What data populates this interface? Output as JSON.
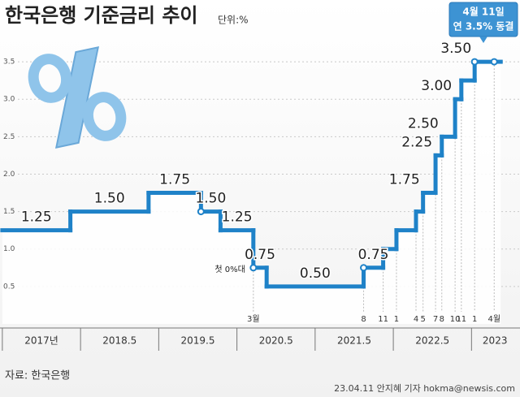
{
  "chart_data": {
    "type": "step",
    "title": "한국은행 기준금리 추이",
    "unit": "단위:%",
    "callout": [
      "4월 11일",
      "연 3.5% 동결"
    ],
    "annotation": "첫 0%대",
    "source": "자료: 한국은행",
    "credit": "23.04.11 안지혜 기자 hokma@newsis.com",
    "xlim": [
      2016.97,
      2023.62
    ],
    "xticks": [
      {
        "value": 2017.5,
        "label": "2017년"
      },
      2018.5,
      2019.5,
      2020.5,
      2021.5,
      2022.5,
      {
        "value": 2023.3,
        "label": "2023"
      }
    ],
    "ylim": [
      0,
      3.75
    ],
    "yticks": [
      0.5,
      {
        "value": 1,
        "label": "1.0"
      },
      1.5,
      {
        "value": 2,
        "label": "2.0"
      },
      2.5,
      {
        "value": 3,
        "label": "3.0"
      },
      3.5
    ],
    "grid": true,
    "x": [
      2017.0,
      2017.87,
      2018.87,
      2019.54,
      2019.79,
      2020.21,
      2020.38,
      2021.62,
      2021.87,
      2022.04,
      2022.29,
      2022.38,
      2022.54,
      2022.62,
      2022.79,
      2022.87,
      2023.04,
      2023.29
    ],
    "x_labels": [
      null,
      null,
      null,
      null,
      null,
      "3월",
      null,
      "8",
      "11",
      "1",
      "4",
      "5",
      "7",
      "8",
      "10",
      "11",
      "1",
      "4월"
    ],
    "series": [
      {
        "color": "#1f82c8",
        "values": [
          1.25,
          1.5,
          1.75,
          1.5,
          1.25,
          0.75,
          0.5,
          0.75,
          1.0,
          1.25,
          1.5,
          1.75,
          2.25,
          2.5,
          3.0,
          3.25,
          3.5,
          3.5
        ],
        "value_labels": [
          "1.25",
          "1.50",
          "1.75",
          "1.50",
          "1.25",
          "0.75",
          "0.50",
          "0.75",
          null,
          null,
          null,
          "1.75",
          "2.25",
          "2.50",
          "3.00",
          null,
          "3.50",
          null
        ]
      }
    ]
  }
}
